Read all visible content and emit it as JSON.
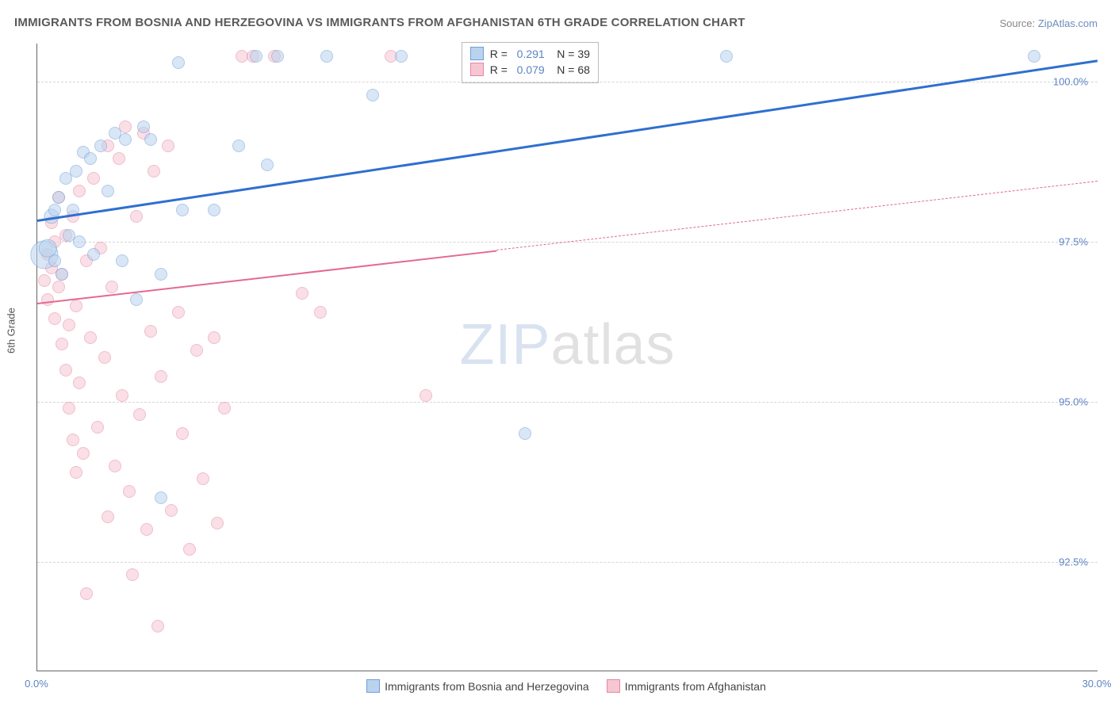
{
  "title": "IMMIGRANTS FROM BOSNIA AND HERZEGOVINA VS IMMIGRANTS FROM AFGHANISTAN 6TH GRADE CORRELATION CHART",
  "source_label": "Source: ",
  "source_name": "ZipAtlas.com",
  "ylabel": "6th Grade",
  "watermark_a": "ZIP",
  "watermark_b": "atlas",
  "chart": {
    "type": "scatter",
    "xlim": [
      0,
      30
    ],
    "ylim": [
      90.8,
      100.6
    ],
    "xticks": [
      {
        "v": 0,
        "label": "0.0%"
      },
      {
        "v": 30,
        "label": "30.0%"
      }
    ],
    "yticks": [
      {
        "v": 92.5,
        "label": "92.5%"
      },
      {
        "v": 95.0,
        "label": "95.0%"
      },
      {
        "v": 97.5,
        "label": "97.5%"
      },
      {
        "v": 100.0,
        "label": "100.0%"
      }
    ],
    "grid_color": "#d6d6d6",
    "background_color": "#ffffff",
    "series": [
      {
        "id": "bosnia",
        "label": "Immigrants from Bosnia and Herzegovina",
        "fill": "#b9d3ef",
        "stroke": "#6fa0d8",
        "fill_opacity": 0.55,
        "trend": {
          "color": "#2f6fd0",
          "width": 3,
          "x1": 0,
          "y1": 97.85,
          "x2": 30,
          "y2": 100.35,
          "dashed_from": null
        },
        "r_label": "R = ",
        "r_value": "0.291",
        "n_label": "N = ",
        "n_value": "39",
        "points": [
          {
            "x": 0.2,
            "y": 97.3,
            "s": 22
          },
          {
            "x": 0.3,
            "y": 97.4,
            "s": 14
          },
          {
            "x": 0.4,
            "y": 97.9,
            "s": 12
          },
          {
            "x": 0.5,
            "y": 98.0,
            "s": 10
          },
          {
            "x": 0.5,
            "y": 97.2,
            "s": 10
          },
          {
            "x": 0.6,
            "y": 98.2,
            "s": 10
          },
          {
            "x": 0.7,
            "y": 97.0,
            "s": 10
          },
          {
            "x": 0.8,
            "y": 98.5,
            "s": 10
          },
          {
            "x": 0.9,
            "y": 97.6,
            "s": 10
          },
          {
            "x": 1.0,
            "y": 98.0,
            "s": 10
          },
          {
            "x": 1.1,
            "y": 98.6,
            "s": 10
          },
          {
            "x": 1.2,
            "y": 97.5,
            "s": 10
          },
          {
            "x": 1.3,
            "y": 98.9,
            "s": 10
          },
          {
            "x": 1.5,
            "y": 98.8,
            "s": 10
          },
          {
            "x": 1.6,
            "y": 97.3,
            "s": 10
          },
          {
            "x": 1.8,
            "y": 99.0,
            "s": 10
          },
          {
            "x": 2.0,
            "y": 98.3,
            "s": 10
          },
          {
            "x": 2.2,
            "y": 99.2,
            "s": 10
          },
          {
            "x": 2.4,
            "y": 97.2,
            "s": 10
          },
          {
            "x": 2.5,
            "y": 99.1,
            "s": 10
          },
          {
            "x": 2.8,
            "y": 96.6,
            "s": 10
          },
          {
            "x": 3.0,
            "y": 99.3,
            "s": 10
          },
          {
            "x": 3.2,
            "y": 99.1,
            "s": 10
          },
          {
            "x": 3.5,
            "y": 97.0,
            "s": 10
          },
          {
            "x": 3.5,
            "y": 93.5,
            "s": 10
          },
          {
            "x": 4.0,
            "y": 100.3,
            "s": 10
          },
          {
            "x": 4.1,
            "y": 98.0,
            "s": 10
          },
          {
            "x": 5.0,
            "y": 98.0,
            "s": 10
          },
          {
            "x": 5.7,
            "y": 99.0,
            "s": 10
          },
          {
            "x": 6.2,
            "y": 100.4,
            "s": 10
          },
          {
            "x": 6.5,
            "y": 98.7,
            "s": 10
          },
          {
            "x": 6.8,
            "y": 100.4,
            "s": 10
          },
          {
            "x": 8.2,
            "y": 100.4,
            "s": 10
          },
          {
            "x": 9.5,
            "y": 99.8,
            "s": 10
          },
          {
            "x": 10.3,
            "y": 100.4,
            "s": 10
          },
          {
            "x": 13.8,
            "y": 94.5,
            "s": 10
          },
          {
            "x": 19.5,
            "y": 100.4,
            "s": 10
          },
          {
            "x": 28.2,
            "y": 100.4,
            "s": 10
          }
        ]
      },
      {
        "id": "afghanistan",
        "label": "Immigrants from Afghanistan",
        "fill": "#f6c6d3",
        "stroke": "#e488a3",
        "fill_opacity": 0.55,
        "trend": {
          "color": "#e36a8f",
          "width": 2,
          "x1": 0,
          "y1": 96.55,
          "x2": 30,
          "y2": 98.45,
          "dashed_from": 13.0
        },
        "r_label": "R = ",
        "r_value": "0.079",
        "n_label": "N = ",
        "n_value": "68",
        "points": [
          {
            "x": 0.2,
            "y": 96.9,
            "s": 10
          },
          {
            "x": 0.3,
            "y": 97.3,
            "s": 10
          },
          {
            "x": 0.3,
            "y": 96.6,
            "s": 10
          },
          {
            "x": 0.4,
            "y": 97.8,
            "s": 10
          },
          {
            "x": 0.4,
            "y": 97.1,
            "s": 10
          },
          {
            "x": 0.5,
            "y": 96.3,
            "s": 10
          },
          {
            "x": 0.5,
            "y": 97.5,
            "s": 10
          },
          {
            "x": 0.6,
            "y": 98.2,
            "s": 10
          },
          {
            "x": 0.6,
            "y": 96.8,
            "s": 10
          },
          {
            "x": 0.7,
            "y": 97.0,
            "s": 10
          },
          {
            "x": 0.7,
            "y": 95.9,
            "s": 10
          },
          {
            "x": 0.8,
            "y": 97.6,
            "s": 10
          },
          {
            "x": 0.8,
            "y": 95.5,
            "s": 10
          },
          {
            "x": 0.9,
            "y": 96.2,
            "s": 10
          },
          {
            "x": 0.9,
            "y": 94.9,
            "s": 10
          },
          {
            "x": 1.0,
            "y": 97.9,
            "s": 10
          },
          {
            "x": 1.0,
            "y": 94.4,
            "s": 10
          },
          {
            "x": 1.1,
            "y": 96.5,
            "s": 10
          },
          {
            "x": 1.1,
            "y": 93.9,
            "s": 10
          },
          {
            "x": 1.2,
            "y": 98.3,
            "s": 10
          },
          {
            "x": 1.2,
            "y": 95.3,
            "s": 10
          },
          {
            "x": 1.3,
            "y": 94.2,
            "s": 10
          },
          {
            "x": 1.4,
            "y": 97.2,
            "s": 10
          },
          {
            "x": 1.4,
            "y": 92.0,
            "s": 10
          },
          {
            "x": 1.5,
            "y": 96.0,
            "s": 10
          },
          {
            "x": 1.6,
            "y": 98.5,
            "s": 10
          },
          {
            "x": 1.7,
            "y": 94.6,
            "s": 10
          },
          {
            "x": 1.8,
            "y": 97.4,
            "s": 10
          },
          {
            "x": 1.9,
            "y": 95.7,
            "s": 10
          },
          {
            "x": 2.0,
            "y": 99.0,
            "s": 10
          },
          {
            "x": 2.0,
            "y": 93.2,
            "s": 10
          },
          {
            "x": 2.1,
            "y": 96.8,
            "s": 10
          },
          {
            "x": 2.2,
            "y": 94.0,
            "s": 10
          },
          {
            "x": 2.3,
            "y": 98.8,
            "s": 10
          },
          {
            "x": 2.4,
            "y": 95.1,
            "s": 10
          },
          {
            "x": 2.5,
            "y": 99.3,
            "s": 10
          },
          {
            "x": 2.6,
            "y": 93.6,
            "s": 10
          },
          {
            "x": 2.7,
            "y": 92.3,
            "s": 10
          },
          {
            "x": 2.8,
            "y": 97.9,
            "s": 10
          },
          {
            "x": 2.9,
            "y": 94.8,
            "s": 10
          },
          {
            "x": 3.0,
            "y": 99.2,
            "s": 10
          },
          {
            "x": 3.1,
            "y": 93.0,
            "s": 10
          },
          {
            "x": 3.2,
            "y": 96.1,
            "s": 10
          },
          {
            "x": 3.3,
            "y": 98.6,
            "s": 10
          },
          {
            "x": 3.4,
            "y": 91.5,
            "s": 10
          },
          {
            "x": 3.5,
            "y": 95.4,
            "s": 10
          },
          {
            "x": 3.7,
            "y": 99.0,
            "s": 10
          },
          {
            "x": 3.8,
            "y": 93.3,
            "s": 10
          },
          {
            "x": 4.0,
            "y": 96.4,
            "s": 10
          },
          {
            "x": 4.1,
            "y": 94.5,
            "s": 10
          },
          {
            "x": 4.3,
            "y": 92.7,
            "s": 10
          },
          {
            "x": 4.5,
            "y": 95.8,
            "s": 10
          },
          {
            "x": 4.7,
            "y": 93.8,
            "s": 10
          },
          {
            "x": 5.0,
            "y": 96.0,
            "s": 10
          },
          {
            "x": 5.1,
            "y": 93.1,
            "s": 10
          },
          {
            "x": 5.3,
            "y": 94.9,
            "s": 10
          },
          {
            "x": 5.8,
            "y": 100.4,
            "s": 10
          },
          {
            "x": 6.1,
            "y": 100.4,
            "s": 10
          },
          {
            "x": 6.7,
            "y": 100.4,
            "s": 10
          },
          {
            "x": 7.5,
            "y": 96.7,
            "s": 10
          },
          {
            "x": 8.0,
            "y": 96.4,
            "s": 10
          },
          {
            "x": 10.0,
            "y": 100.4,
            "s": 10
          },
          {
            "x": 11.0,
            "y": 95.1,
            "s": 10
          }
        ]
      }
    ]
  },
  "legend_bottom": [
    {
      "sw_fill": "#b9d3ef",
      "sw_stroke": "#6fa0d8",
      "label": "Immigrants from Bosnia and Herzegovina"
    },
    {
      "sw_fill": "#f6c6d3",
      "sw_stroke": "#e488a3",
      "label": "Immigrants from Afghanistan"
    }
  ]
}
